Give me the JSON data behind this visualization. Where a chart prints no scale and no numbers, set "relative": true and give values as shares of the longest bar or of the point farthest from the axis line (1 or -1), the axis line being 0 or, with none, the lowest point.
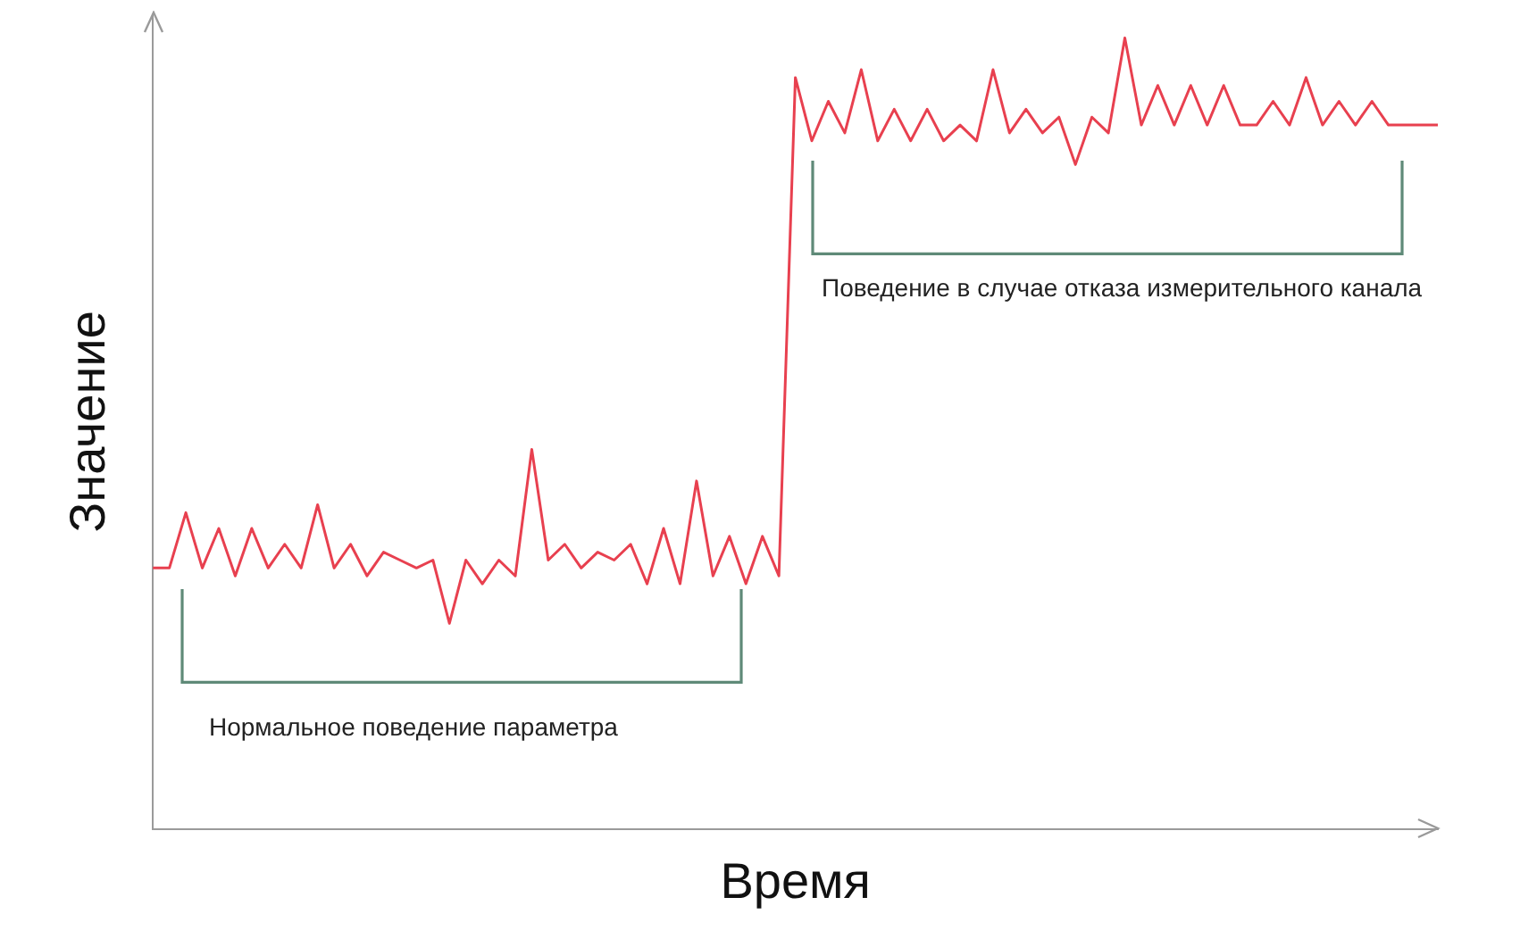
{
  "chart_data": {
    "type": "line",
    "relative": true,
    "xlabel": "Время",
    "ylabel": "Значение",
    "annotations": [
      "Нормальное поведение параметра",
      "Поведение в случае отказа измерительного канала"
    ],
    "categories": [
      null,
      null,
      null,
      null,
      null,
      null,
      null,
      null,
      null,
      null,
      null,
      null,
      null,
      null,
      null,
      null,
      null,
      null,
      null,
      null,
      null,
      null,
      null,
      null,
      null,
      null,
      null,
      null,
      null,
      null,
      null,
      null,
      null,
      null,
      null,
      null,
      null,
      null,
      null,
      null,
      null,
      null,
      null,
      null,
      null,
      null,
      null,
      null,
      null,
      null,
      null,
      null,
      null,
      null,
      null,
      null,
      null,
      null,
      null,
      null,
      null,
      null,
      null,
      null,
      null,
      null,
      null,
      null,
      null,
      null,
      null,
      null,
      null,
      null,
      null,
      null,
      null,
      null,
      null
    ],
    "series": [
      {
        "color": "#e8404f",
        "values": [
          0.33,
          0.33,
          0.4,
          0.33,
          0.38,
          0.32,
          0.38,
          0.33,
          0.36,
          0.33,
          0.41,
          0.33,
          0.36,
          0.32,
          0.35,
          0.34,
          0.33,
          0.34,
          0.26,
          0.34,
          0.31,
          0.34,
          0.32,
          0.48,
          0.34,
          0.36,
          0.33,
          0.35,
          0.34,
          0.36,
          0.31,
          0.38,
          0.31,
          0.44,
          0.32,
          0.37,
          0.31,
          0.37,
          0.32,
          0.95,
          0.87,
          0.92,
          0.88,
          0.96,
          0.87,
          0.91,
          0.87,
          0.91,
          0.87,
          0.89,
          0.87,
          0.96,
          0.88,
          0.91,
          0.88,
          0.9,
          0.84,
          0.9,
          0.88,
          1,
          0.89,
          0.94,
          0.89,
          0.94,
          0.89,
          0.94,
          0.89,
          0.89,
          0.92,
          0.89,
          0.95,
          0.89,
          0.92,
          0.89,
          0.92,
          0.89,
          0.89,
          0.89,
          0.89
        ]
      }
    ],
    "legend": false,
    "grid": false,
    "marker": "none",
    "line_style": "solid"
  }
}
